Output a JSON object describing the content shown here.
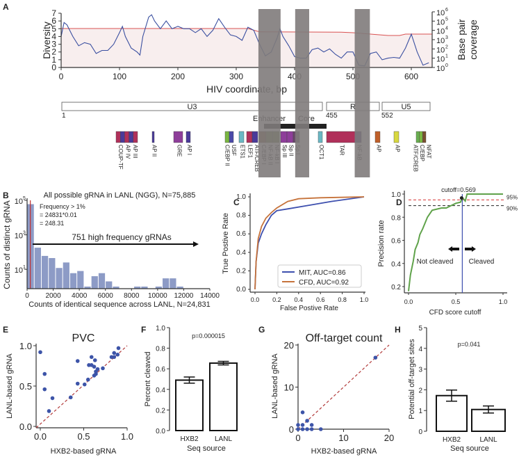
{
  "panel_labels": {
    "A": "A",
    "B": "B",
    "C": "C",
    "D": "D",
    "E": "E",
    "F": "F",
    "G": "G",
    "H": "H"
  },
  "colors": {
    "diversity": "#3a4fa0",
    "coverage": "#d95050",
    "coverage_fill": "#f8eeee",
    "band": "#7f7b7b",
    "hist": "#8d9bc6",
    "mit": "#3d4fae",
    "cfd": "#c6733b",
    "precision": "#5fa24a",
    "cutoff": "#3d4fae",
    "red_dash": "#d63333",
    "diag": "#b23a3a",
    "point": "#3d54a8"
  },
  "chart_data": [
    {
      "id": "A",
      "type": "line",
      "xlabel": "HIV coordinate, bp",
      "ylabel": "Diversity",
      "ylabel_right": [
        "Base pair",
        "coverage"
      ],
      "xlim": [
        0,
        636
      ],
      "ylim": [
        0,
        7
      ],
      "y2lim_log10": [
        0,
        6
      ],
      "xticks": [
        "0",
        "100",
        "200",
        "300",
        "400",
        "500",
        "600"
      ],
      "yticks": [
        "0",
        "1",
        "2",
        "3",
        "4",
        "5",
        "6",
        "7"
      ],
      "y2ticks": [
        "0",
        "1",
        "2",
        "3",
        "4",
        "5",
        "6"
      ],
      "y2tick_base": "10",
      "highlighted_regions_bp": [
        [
          338,
          376
        ],
        [
          401,
          425
        ],
        [
          503,
          529
        ]
      ],
      "diversity": {
        "x": [
          0,
          5,
          10,
          20,
          30,
          40,
          50,
          60,
          70,
          80,
          90,
          100,
          105,
          110,
          120,
          130,
          135,
          140,
          150,
          155,
          160,
          170,
          180,
          190,
          200,
          210,
          220,
          230,
          240,
          250,
          260,
          270,
          280,
          290,
          300,
          310,
          320,
          330,
          340,
          350,
          360,
          370,
          375,
          380,
          390,
          400,
          410,
          420,
          430,
          440,
          450,
          460,
          470,
          480,
          490,
          500,
          510,
          520,
          530,
          540,
          550,
          560,
          570,
          580,
          590,
          600,
          610,
          620,
          630
        ],
        "y": [
          4,
          5.8,
          5.5,
          4,
          2.8,
          3.2,
          3,
          1.8,
          2.2,
          2.2,
          3,
          4.5,
          5.3,
          4,
          2.5,
          2,
          1.6,
          4,
          6.5,
          6.8,
          6,
          5,
          6,
          5,
          5.3,
          5,
          5,
          4.5,
          5,
          4,
          4.8,
          6.3,
          5.2,
          4.2,
          4,
          3.5,
          5.2,
          4.8,
          3,
          1.5,
          2,
          3.8,
          5,
          4,
          2.8,
          1.4,
          1.2,
          1.2,
          2.3,
          2.5,
          2,
          2.4,
          1.7,
          1.2,
          2,
          2,
          0.3,
          0.2,
          1.8,
          2,
          1,
          1.2,
          1.3,
          1.2,
          2.5,
          4.3,
          2,
          0.3,
          0.6
        ]
      },
      "coverage_log10": {
        "x": [
          0,
          320,
          340,
          480,
          500,
          560,
          580,
          590,
          636
        ],
        "y": [
          4.2,
          4.2,
          3.85,
          3.8,
          3.75,
          3.45,
          3.45,
          3.6,
          3.6
        ]
      },
      "genome_map": {
        "regions": [
          {
            "label": "U3",
            "start": 1,
            "end": 455
          },
          {
            "label": "R",
            "start": 455,
            "end": 552
          },
          {
            "label": "U5",
            "start": 552,
            "end": 634
          }
        ],
        "start_labels": [
          "1",
          "455",
          "552"
        ],
        "enhancer": "Enhancer",
        "core": "Core",
        "elements": [
          {
            "labels": [
              "COUP-TF",
              "AP IV",
              "AP III"
            ],
            "colors": [
              "#b0305a",
              "#4a3a9a",
              "#b0305a",
              "#4a3a9a",
              "#b0305a"
            ]
          },
          {
            "labels": [
              "AP II"
            ],
            "colors": [
              "#4a3a9a"
            ]
          },
          {
            "labels": [
              "GRE"
            ],
            "colors": [
              "#8e3e9a"
            ]
          },
          {
            "labels": [
              "AP I"
            ],
            "colors": [
              "#4a3a9a"
            ]
          },
          {
            "labels": [
              "C/EBP II",
              "USF"
            ],
            "colors": [
              "#7ab642",
              "#4a4aa8"
            ]
          },
          {
            "labels": [
              "ETS1"
            ],
            "colors": [
              "#6ab8c4"
            ]
          },
          {
            "labels": [
              "LEF1",
              "ATF/CREB"
            ],
            "colors": [
              "#b0305a",
              "#4a3a9a"
            ]
          },
          {
            "labels": [
              "C/EBP I",
              "NF-kB II",
              "NF-kB I"
            ],
            "colors": [
              "#7a5030",
              "#6a7a3a",
              "#6a7a3a"
            ]
          },
          {
            "labels": [
              "Sp III",
              "Sp II",
              "Sp I"
            ],
            "colors": [
              "#8e3e9a",
              "#8e3e9a",
              "#6a4a6a"
            ]
          },
          {
            "labels": [
              "OCT1"
            ],
            "colors": [
              "#6ab8c4"
            ]
          },
          {
            "labels": [
              "TAR"
            ],
            "colors": [
              "#b0305a"
            ]
          },
          {
            "labels": [
              "NF-kB"
            ],
            "colors": [
              "#4a3a7a"
            ]
          },
          {
            "labels": [
              "AP"
            ],
            "colors": [
              "#c0602a"
            ]
          },
          {
            "labels": [
              "AP"
            ],
            "colors": [
              "#d8d840"
            ]
          },
          {
            "labels": [
              "ATF/CREB",
              "C/EBP",
              "NFAT"
            ],
            "colors": [
              "#6ab050",
              "#7ab642",
              "#7a5030"
            ]
          }
        ]
      }
    },
    {
      "id": "B",
      "type": "bar",
      "title": "All possible gRNA in LANL (NGG), N=75,885",
      "xlabel": "Counts of identical sequence across LANL, N=24,831",
      "ylabel": "Counts of distinct gRNA",
      "xlim": [
        0,
        14000
      ],
      "ylim_log10": [
        -0.15,
        5
      ],
      "yscale": "log",
      "xticks": [
        "0",
        "2000",
        "4000",
        "6000",
        "8000",
        "10000",
        "12000",
        "14000"
      ],
      "yticks": [
        {
          "base": "10",
          "exp": "1",
          "v": 1
        },
        {
          "base": "10",
          "exp": "3",
          "v": 3
        },
        {
          "base": "10",
          "exp": "5",
          "v": 5
        }
      ],
      "bin_width": 545,
      "values": [
        60000,
        180,
        60,
        45,
        12,
        25,
        6,
        8,
        1,
        4,
        6,
        2,
        1,
        0,
        0,
        1,
        1,
        0,
        1,
        3,
        3,
        1
      ],
      "threshold": 248.31,
      "annotation": [
        "Frequency > 1%",
        "= 24831*0.01",
        "= 248.31"
      ],
      "arrow_label": "751 high frequency gRNAs"
    },
    {
      "id": "C",
      "type": "line",
      "xlabel": "False Postive Rate",
      "ylabel": "True Postive Rate",
      "xlim": [
        0,
        1
      ],
      "ylim": [
        0,
        1
      ],
      "xticks": [
        "0.0",
        "0.2",
        "0.4",
        "0.6",
        "0.8",
        "1.0"
      ],
      "yticks": [
        "0.0",
        "0.2",
        "0.4",
        "0.6",
        "0.8",
        "1.0"
      ],
      "legend_position": "bottom-right",
      "series": [
        {
          "name": "MIT, AUC=0.86",
          "x": [
            0,
            0.01,
            0.03,
            0.06,
            0.1,
            0.15,
            0.2,
            0.3,
            0.5,
            0.7,
            1
          ],
          "y": [
            0,
            0.3,
            0.5,
            0.6,
            0.7,
            0.8,
            0.85,
            0.87,
            0.91,
            0.95,
            1
          ]
        },
        {
          "name": "CFD, AUC=0.92",
          "x": [
            0,
            0.01,
            0.03,
            0.06,
            0.1,
            0.15,
            0.2,
            0.3,
            0.4,
            0.6,
            1
          ],
          "y": [
            0,
            0.3,
            0.55,
            0.68,
            0.77,
            0.83,
            0.88,
            0.95,
            0.98,
            0.99,
            1
          ]
        }
      ]
    },
    {
      "id": "D",
      "type": "line",
      "xlabel": "CFD score cutoff",
      "ylabel": "Precision rate",
      "xlim": [
        0,
        1
      ],
      "ylim": [
        0.15,
        1.02
      ],
      "xticks": [
        "0.0",
        "0.5",
        "1.0"
      ],
      "yticks": [
        "0.2",
        "0.4",
        "0.6",
        "0.8",
        "1.0"
      ],
      "x": [
        0,
        0.02,
        0.05,
        0.07,
        0.1,
        0.12,
        0.15,
        0.2,
        0.25,
        0.3,
        0.35,
        0.4,
        0.45,
        0.5,
        0.55,
        0.57,
        0.6,
        0.62,
        1
      ],
      "y": [
        0.16,
        0.3,
        0.42,
        0.52,
        0.58,
        0.65,
        0.7,
        0.8,
        0.86,
        0.87,
        0.88,
        0.88,
        0.9,
        0.92,
        0.93,
        0.97,
        0.94,
        1,
        1
      ],
      "cutoff": 0.569,
      "cutoff_label": "cutoff=0.569",
      "hlines": [
        {
          "y": 0.95,
          "label": "95%"
        },
        {
          "y": 0.9,
          "label": "90%"
        }
      ],
      "left_label": "Not cleaved",
      "right_label": "Cleaved"
    },
    {
      "id": "E",
      "type": "scatter",
      "title": "PVC",
      "xlabel": "HXB2-based gRNA",
      "ylabel": "LANL-based gRNA",
      "xlim": [
        0,
        1
      ],
      "ylim": [
        0,
        1
      ],
      "xticks": [
        "0.0",
        "0.5",
        "1.0"
      ],
      "yticks": [
        "0.0",
        "0.5",
        "1.0"
      ],
      "x": [
        0,
        0.05,
        0.05,
        0.1,
        0.14,
        0.35,
        0.43,
        0.43,
        0.51,
        0.55,
        0.56,
        0.59,
        0.59,
        0.62,
        0.62,
        0.63,
        0.64,
        0.64,
        0.66,
        0.72,
        0.82,
        0.85,
        0.85,
        0.89,
        0.9
      ],
      "y": [
        0.92,
        0.65,
        0.46,
        0.19,
        0.35,
        0.36,
        0.81,
        0.53,
        0.52,
        0.58,
        0.76,
        0.86,
        0.76,
        0.74,
        0.63,
        0.82,
        0.68,
        0.65,
        0.71,
        0.72,
        0.86,
        0.91,
        0.86,
        0.89,
        0.97
      ]
    },
    {
      "id": "F",
      "type": "bar",
      "xlabel": "Seq source",
      "ylabel": "Percent cleaved",
      "ylim": [
        0,
        1
      ],
      "yticks": [
        "0.0",
        "0.2",
        "0.4",
        "0.6",
        "0.8",
        "1.0"
      ],
      "categories": [
        "HXB2",
        "LANL"
      ],
      "values": [
        0.49,
        0.655
      ],
      "errors": [
        0.03,
        0.017
      ],
      "annotation": "p=0.000015"
    },
    {
      "id": "G",
      "type": "scatter",
      "title": "Off-target count",
      "xlabel": "HXB2-based gRNA",
      "ylabel": "LANL-based gRNA",
      "xlim": [
        0,
        20
      ],
      "ylim": [
        0,
        20
      ],
      "xticks": [
        "0",
        "10",
        "20"
      ],
      "yticks": [
        "0",
        "10",
        "20"
      ],
      "x": [
        0,
        0,
        1,
        1,
        1,
        2,
        2,
        3,
        3,
        5,
        17
      ],
      "y": [
        1,
        0,
        4,
        1,
        0,
        2,
        0,
        1,
        0,
        0,
        17
      ]
    },
    {
      "id": "H",
      "type": "bar",
      "xlabel": "Seq source",
      "ylabel": "Potential off-target sites",
      "ylim": [
        0,
        5
      ],
      "yticks": [
        "0",
        "1",
        "2",
        "3",
        "4",
        "5"
      ],
      "categories": [
        "HXB2",
        "LANL"
      ],
      "values": [
        1.72,
        1.05
      ],
      "errors": [
        0.27,
        0.17
      ],
      "annotation": "p=0.041"
    }
  ]
}
